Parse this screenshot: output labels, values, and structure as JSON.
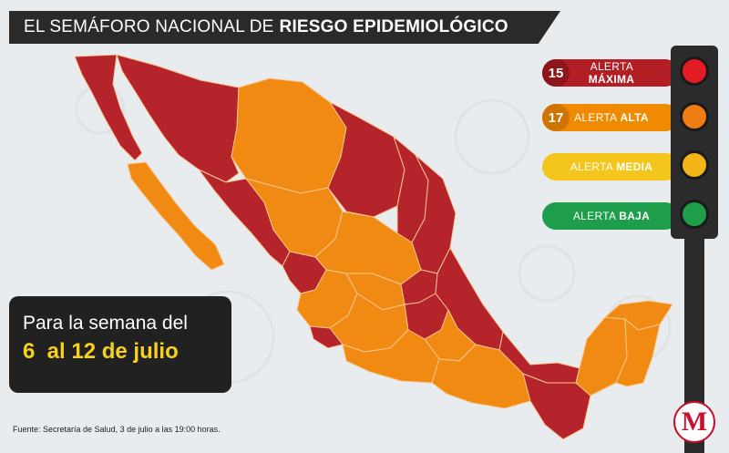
{
  "title": {
    "prefix": "EL SEMÁFORO NACIONAL DE",
    "emphasis": "RIESGO EPIDEMIOLÓGICO"
  },
  "legend": [
    {
      "count": "15",
      "label_prefix": "ALERTA",
      "label_emphasis": "MÁXIMA",
      "color": "#b11f24"
    },
    {
      "count": "17",
      "label_prefix": "ALERTA",
      "label_emphasis": "ALTA",
      "color": "#f08a00"
    },
    {
      "count": "",
      "label_prefix": "ALERTA",
      "label_emphasis": "MEDIA",
      "color": "#f4c51a"
    },
    {
      "count": "",
      "label_prefix": "ALERTA",
      "label_emphasis": "BAJA",
      "color": "#1e9e4a"
    }
  ],
  "lights": {
    "red": "#e31b23",
    "orange": "#f07d12",
    "yellow": "#f3b418",
    "green": "#1e9e4a"
  },
  "week_box": {
    "line1": "Para la semana del",
    "line2": "6  al 12 de julio"
  },
  "source": "Fuente: Secretaría de Salud, 3 de julio a las 19:00 horas.",
  "logo": "M",
  "colors": {
    "maxima": "#b5242a",
    "alta": "#f18a12",
    "border": "#f6c28a"
  }
}
